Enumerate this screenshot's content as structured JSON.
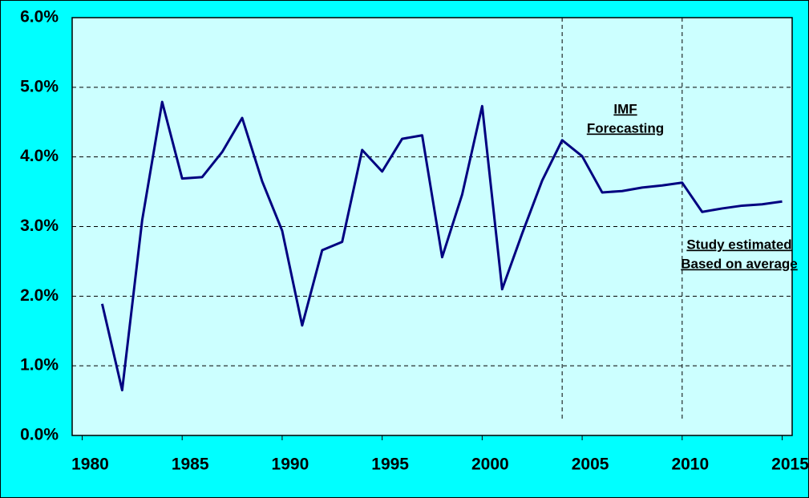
{
  "chart_data": {
    "type": "line",
    "x": [
      1981,
      1982,
      1983,
      1984,
      1985,
      1986,
      1987,
      1988,
      1989,
      1990,
      1991,
      1992,
      1993,
      1994,
      1995,
      1996,
      1997,
      1998,
      1999,
      2000,
      2001,
      2002,
      2003,
      2004,
      2005,
      2006,
      2007,
      2008,
      2009,
      2010,
      2011,
      2012,
      2013,
      2014,
      2015
    ],
    "series": [
      {
        "color": "#000080",
        "values": [
          1.89,
          0.65,
          3.09,
          4.79,
          3.69,
          3.71,
          4.07,
          4.56,
          3.65,
          2.94,
          1.58,
          2.66,
          2.78,
          4.1,
          3.79,
          4.26,
          4.31,
          2.56,
          3.46,
          4.73,
          2.1,
          2.9,
          3.66,
          4.24,
          4.01,
          3.49,
          3.51,
          3.56,
          3.59,
          3.63,
          3.21,
          3.26,
          3.3,
          3.32,
          3.36
        ]
      }
    ],
    "xlim": [
      1979.5,
      2015.5
    ],
    "xticks": [
      1980,
      1985,
      1990,
      1995,
      2000,
      2005,
      2010,
      2015
    ],
    "ylim": [
      0,
      6
    ],
    "yticks": [
      {
        "value": 0,
        "label": "0.0%"
      },
      {
        "value": 1,
        "label": "1.0%"
      },
      {
        "value": 2,
        "label": "2.0%"
      },
      {
        "value": 3,
        "label": "3.0%"
      },
      {
        "value": 4,
        "label": "4.0%"
      },
      {
        "value": 5,
        "label": "5.0%"
      },
      {
        "value": 6,
        "label": "6.0%"
      }
    ],
    "grid": true,
    "vlines": [
      2004,
      2010
    ],
    "annotations": [
      [
        "IMF",
        "Forecasting"
      ],
      [
        "Study estimated",
        "Based on average"
      ]
    ]
  }
}
